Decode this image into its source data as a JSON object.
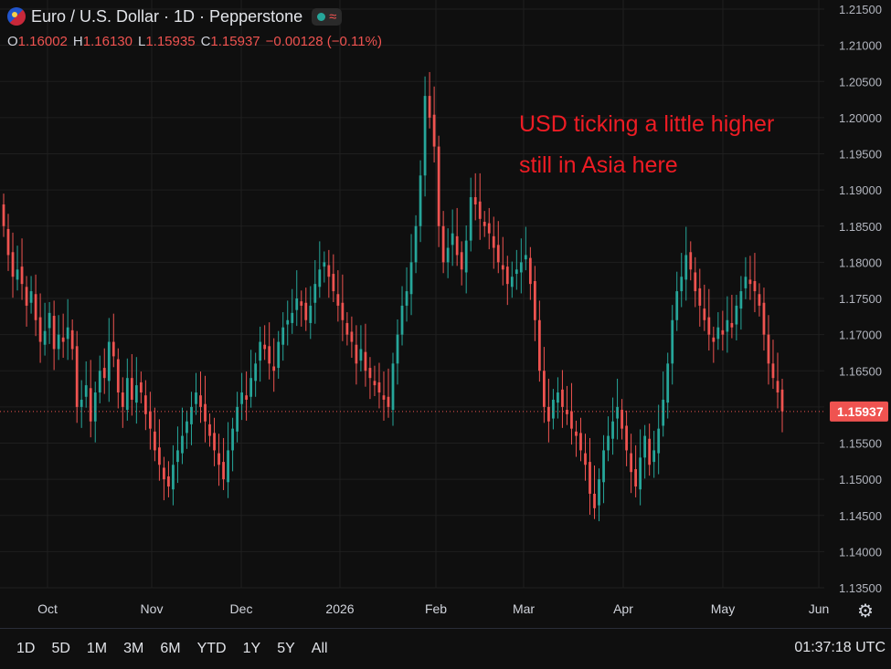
{
  "header": {
    "symbol_title": "Euro / U.S. Dollar · 1D · Pepperstone",
    "ohlc": [
      {
        "key": "O",
        "value": "1.16002"
      },
      {
        "key": "H",
        "value": "1.16130"
      },
      {
        "key": "L",
        "value": "1.15935"
      },
      {
        "key": "C",
        "value": "1.15937"
      },
      {
        "key": "",
        "value": "−0.00128 (−0.11%)"
      }
    ]
  },
  "annotation": "USD ticking a little higher still in Asia here",
  "time_ranges": [
    "1D",
    "5D",
    "1M",
    "3M",
    "6M",
    "YTD",
    "1Y",
    "5Y",
    "All"
  ],
  "clock": "01:37:18 UTC",
  "colors": {
    "up": "#26a69a",
    "down": "#ef5350",
    "background": "#0f0f0f",
    "grid": "#1f1f1f",
    "annotation": "#ee1c24"
  },
  "icons": {
    "flag": "eur-usd-flag-icon",
    "market_status": "market-open-dot-icon",
    "realtime": "wave-icon",
    "settings": "gear-icon"
  },
  "chart_data": {
    "type": "candlestick",
    "title": "Euro / U.S. Dollar · 1D · Pepperstone",
    "ylim": [
      1.135,
      1.218
    ],
    "y_ticks": [
      "1.13500",
      "1.14000",
      "1.14500",
      "1.15000",
      "1.15500",
      "1.16000",
      "1.16500",
      "1.17000",
      "1.17500",
      "1.18000",
      "1.18500",
      "1.19000",
      "1.19500",
      "1.20000",
      "1.20500",
      "1.21000",
      "1.21500"
    ],
    "x_ticks": [
      "Oct",
      "Nov",
      "Dec",
      "2026",
      "Feb",
      "Mar",
      "Apr",
      "May",
      "Jun"
    ],
    "last_price": "1.15937",
    "grid": true,
    "candles_close": [
      1.185,
      1.181,
      1.178,
      1.179,
      1.177,
      1.174,
      1.176,
      1.172,
      1.169,
      1.1705,
      1.173,
      1.168,
      1.17,
      1.169,
      1.171,
      1.168,
      1.16,
      1.161,
      1.163,
      1.158,
      1.162,
      1.165,
      1.164,
      1.169,
      1.167,
      1.162,
      1.16,
      1.164,
      1.161,
      1.163,
      1.162,
      1.159,
      1.157,
      1.154,
      1.152,
      1.15,
      1.149,
      1.152,
      1.154,
      1.156,
      1.158,
      1.16,
      1.162,
      1.16,
      1.158,
      1.156,
      1.154,
      1.152,
      1.15,
      1.154,
      1.157,
      1.16,
      1.162,
      1.161,
      1.164,
      1.166,
      1.169,
      1.168,
      1.166,
      1.165,
      1.169,
      1.171,
      1.172,
      1.173,
      1.175,
      1.174,
      1.172,
      1.174,
      1.177,
      1.179,
      1.18,
      1.178,
      1.176,
      1.174,
      1.172,
      1.17,
      1.169,
      1.166,
      1.168,
      1.165,
      1.164,
      1.163,
      1.162,
      1.161,
      1.16,
      1.166,
      1.17,
      1.174,
      1.176,
      1.18,
      1.185,
      1.192,
      1.203,
      1.2,
      1.196,
      1.185,
      1.18,
      1.182,
      1.184,
      1.181,
      1.179,
      1.183,
      1.189,
      1.188,
      1.186,
      1.185,
      1.184,
      1.182,
      1.18,
      1.179,
      1.177,
      1.178,
      1.179,
      1.18,
      1.181,
      1.177,
      1.172,
      1.165,
      1.16,
      1.158,
      1.161,
      1.162,
      1.16,
      1.159,
      1.157,
      1.156,
      1.154,
      1.152,
      1.148,
      1.146,
      1.15,
      1.154,
      1.156,
      1.158,
      1.16,
      1.157,
      1.154,
      1.151,
      1.149,
      1.153,
      1.156,
      1.152,
      1.154,
      1.157,
      1.161,
      1.166,
      1.172,
      1.176,
      1.178,
      1.181,
      1.179,
      1.176,
      1.174,
      1.172,
      1.17,
      1.169,
      1.171,
      1.17,
      1.172,
      1.171,
      1.174,
      1.176,
      1.178,
      1.177,
      1.176,
      1.174,
      1.17,
      1.166,
      1.164,
      1.162,
      1.1594
    ]
  }
}
